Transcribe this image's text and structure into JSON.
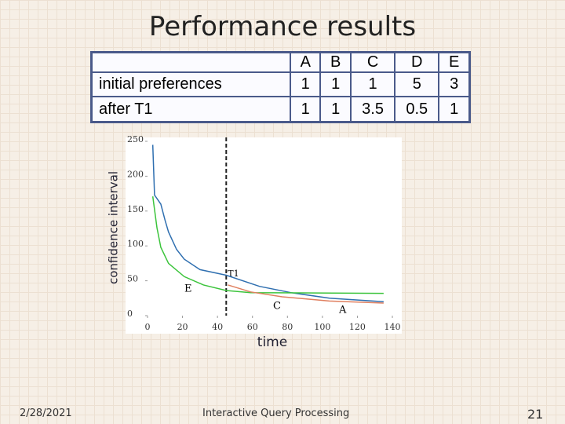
{
  "slide": {
    "title": "Performance results",
    "date": "2/28/2021",
    "footer": "Interactive Query Processing",
    "page": 21
  },
  "table": {
    "columns": [
      "A",
      "B",
      "C",
      "D",
      "E"
    ],
    "rows": [
      {
        "label": "initial preferences",
        "values": [
          1,
          1,
          1,
          5,
          3
        ]
      },
      {
        "label": "after T1",
        "values": [
          1,
          1,
          3.5,
          0.5,
          1
        ]
      }
    ]
  },
  "chart_data": {
    "type": "line",
    "x_label": "time",
    "y_label": "confidence interval",
    "xlim": [
      0,
      140
    ],
    "xticks": [
      0,
      20,
      40,
      60,
      80,
      100,
      120,
      140
    ],
    "ylim": [
      0,
      250
    ],
    "yticks": [
      0,
      50,
      100,
      150,
      200,
      250
    ],
    "vline_x": 45,
    "vline_label": "T1",
    "annotations": [
      "E",
      "C",
      "A"
    ],
    "series": [
      {
        "color": "#2f6fb0",
        "x": [
          3,
          4,
          7.6,
          10,
          12,
          16.6,
          21,
          30,
          45,
          64,
          82,
          104,
          135
        ],
        "values": [
          245,
          173,
          160,
          137,
          120,
          95,
          81,
          66,
          58,
          42,
          33,
          25,
          20
        ]
      },
      {
        "color": "#3cc43c",
        "x": [
          3,
          5.4,
          7.6,
          12,
          21,
          32,
          45,
          59,
          135
        ],
        "values": [
          171,
          126,
          98,
          75,
          56,
          44,
          36,
          33,
          32
        ]
      },
      {
        "color": "#e08060",
        "x": [
          46,
          59,
          77,
          104,
          135
        ],
        "values": [
          44,
          34,
          27,
          21,
          18
        ]
      }
    ]
  }
}
